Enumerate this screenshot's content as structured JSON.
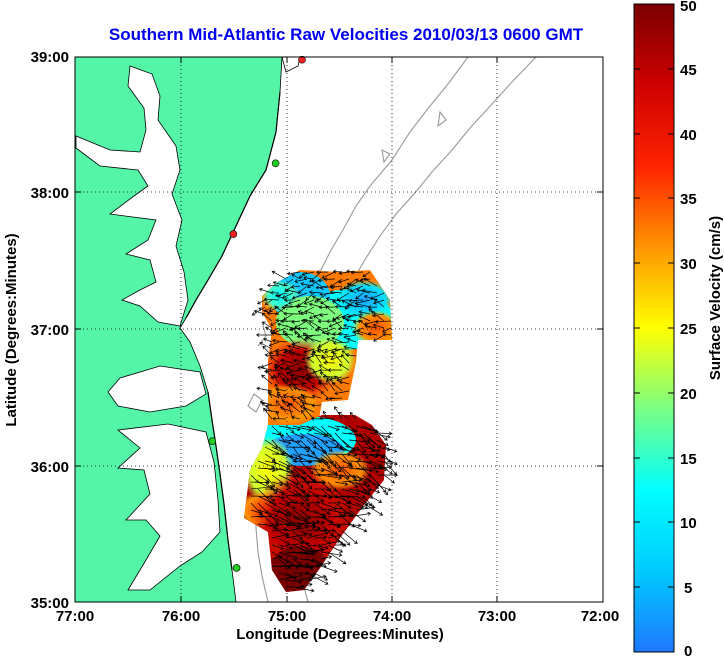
{
  "title": "Southern Mid-Atlantic Raw Velocities 2010/03/13 0600 GMT",
  "x_axis": {
    "label": "Longitude (Degrees:Minutes)",
    "ticks": [
      "77:00",
      "76:00",
      "75:00",
      "74:00",
      "73:00",
      "72:00"
    ]
  },
  "y_axis": {
    "label": "Latitude (Degrees:Minutes)",
    "ticks": [
      "39:00",
      "38:00",
      "37:00",
      "36:00",
      "35:00"
    ]
  },
  "colorbar": {
    "label": "Surface Velocity (cm/s)",
    "ticks": [
      "50",
      "45",
      "40",
      "35",
      "30",
      "25",
      "20",
      "15",
      "10",
      "5",
      "0"
    ],
    "min": 0,
    "max": 50,
    "colormap": "jet"
  },
  "map": {
    "lon_range": [
      -77,
      -72
    ],
    "lat_range": [
      35,
      39
    ],
    "grid": true,
    "land_color": "#55f5a8",
    "water_color": "#ffffff",
    "bathymetry_color": "#999999",
    "arrow_color": "#000000",
    "station_markers": [
      {
        "lon": -74.85,
        "lat": 38.98,
        "color": "#ee2222"
      },
      {
        "lon": -75.1,
        "lat": 38.22,
        "color": "#22cc22"
      },
      {
        "lon": -75.5,
        "lat": 37.7,
        "color": "#ee2222"
      },
      {
        "lon": -75.7,
        "lat": 36.18,
        "color": "#22cc22"
      },
      {
        "lon": -75.47,
        "lat": 35.25,
        "color": "#22cc22"
      }
    ]
  }
}
